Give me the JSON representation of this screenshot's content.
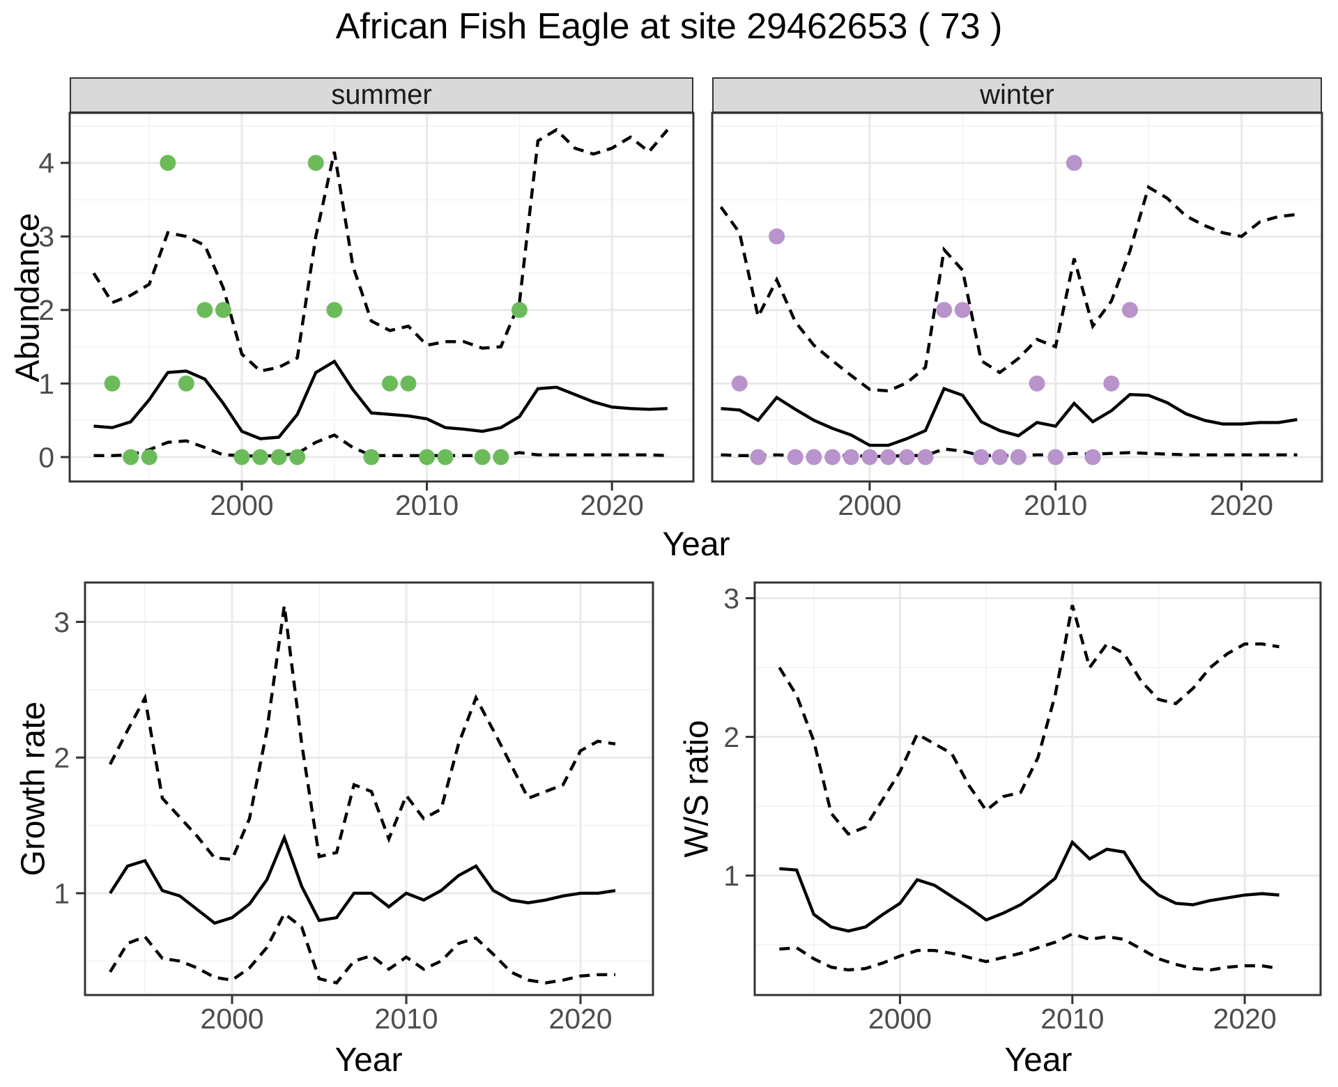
{
  "title": "African Fish Eagle at site 29462653 ( 73 )",
  "top_row": {
    "facets": [
      "summer",
      "winter"
    ],
    "ylabel": "Abundance",
    "xlabel": "Year"
  },
  "bottom_row": {
    "left": {
      "ylabel": "Growth rate",
      "xlabel": "Year"
    },
    "right": {
      "ylabel": "W/S ratio",
      "xlabel": "Year"
    }
  },
  "colors": {
    "summer_points": "#6cbb5b",
    "winter_points": "#b993cb",
    "line": "#000000",
    "grid_major": "#e9e9e9",
    "grid_minor": "#f3f3f3",
    "panel_border": "#333333",
    "strip_fill": "#d9d9d9",
    "tick_text": "#4d4d4d"
  },
  "chart_data": [
    {
      "id": "abundance-summer",
      "type": "line",
      "facet": "summer",
      "title": "Abundance vs Year (summer)",
      "xlabel": "Year",
      "ylabel": "Abundance",
      "xlim": [
        1990.7,
        2024.4
      ],
      "ylim": [
        -0.332,
        4.68
      ],
      "xticks": [
        2000,
        2010,
        2020
      ],
      "xminor": [
        1995,
        2005,
        2015
      ],
      "yticks": [
        0,
        1,
        2,
        3,
        4
      ],
      "yminor": [
        0.5,
        1.5,
        2.5,
        3.5,
        4.5
      ],
      "grid": true,
      "legend": "none",
      "years": [
        1992,
        1993,
        1994,
        1995,
        1996,
        1997,
        1998,
        1999,
        2000,
        2001,
        2002,
        2003,
        2004,
        2005,
        2006,
        2007,
        2008,
        2009,
        2010,
        2011,
        2012,
        2013,
        2014,
        2015,
        2016,
        2017,
        2018,
        2019,
        2020,
        2021,
        2022,
        2023
      ],
      "series": [
        {
          "name": "ci_upper",
          "style": "dashed",
          "values": [
            2.5,
            2.1,
            2.2,
            2.35,
            3.05,
            3.0,
            2.88,
            2.3,
            1.4,
            1.17,
            1.22,
            1.35,
            3.0,
            4.15,
            2.6,
            1.85,
            1.72,
            1.78,
            1.52,
            1.57,
            1.57,
            1.48,
            1.5,
            2.1,
            4.3,
            4.45,
            4.2,
            4.12,
            4.2,
            4.35,
            4.15,
            4.45
          ]
        },
        {
          "name": "ci_lower",
          "style": "dashed",
          "values": [
            0.02,
            0.02,
            0.03,
            0.1,
            0.2,
            0.22,
            0.13,
            0.03,
            0.02,
            0.01,
            0.02,
            0.05,
            0.2,
            0.3,
            0.13,
            0.02,
            0.02,
            0.02,
            0.02,
            0.02,
            0.02,
            0.02,
            0.02,
            0.06,
            0.03,
            0.03,
            0.03,
            0.03,
            0.03,
            0.03,
            0.03,
            0.02
          ]
        },
        {
          "name": "mean",
          "style": "solid",
          "values": [
            0.42,
            0.4,
            0.48,
            0.78,
            1.15,
            1.17,
            1.06,
            0.73,
            0.35,
            0.25,
            0.27,
            0.58,
            1.15,
            1.3,
            0.92,
            0.6,
            0.58,
            0.56,
            0.52,
            0.4,
            0.38,
            0.35,
            0.4,
            0.55,
            0.93,
            0.95,
            0.85,
            0.75,
            0.68,
            0.66,
            0.65,
            0.66
          ]
        }
      ],
      "points": {
        "name": "observed_counts",
        "color": "#6cbb5b",
        "data": [
          [
            1993,
            1
          ],
          [
            1994,
            0
          ],
          [
            1995,
            0
          ],
          [
            1996,
            4
          ],
          [
            1997,
            1
          ],
          [
            1998,
            2
          ],
          [
            1999,
            2
          ],
          [
            2000,
            0
          ],
          [
            2001,
            0
          ],
          [
            2002,
            0
          ],
          [
            2003,
            0
          ],
          [
            2004,
            4
          ],
          [
            2005,
            2
          ],
          [
            2007,
            0
          ],
          [
            2008,
            1
          ],
          [
            2009,
            1
          ],
          [
            2010,
            0
          ],
          [
            2011,
            0
          ],
          [
            2013,
            0
          ],
          [
            2014,
            0
          ],
          [
            2015,
            2
          ]
        ]
      }
    },
    {
      "id": "abundance-winter",
      "type": "line",
      "facet": "winter",
      "title": "Abundance vs Year (winter)",
      "xlabel": "Year",
      "ylabel": "Abundance",
      "xlim": [
        1991.53,
        2024.33
      ],
      "ylim": [
        -0.332,
        4.68
      ],
      "xticks": [
        2000,
        2010,
        2020
      ],
      "xminor": [
        1995,
        2005,
        2015
      ],
      "yticks": [
        0,
        1,
        2,
        3,
        4
      ],
      "yminor": [
        0.5,
        1.5,
        2.5,
        3.5,
        4.5
      ],
      "grid": true,
      "legend": "none",
      "years": [
        1992,
        1993,
        1994,
        1995,
        1996,
        1997,
        1998,
        1999,
        2000,
        2001,
        2002,
        2003,
        2004,
        2005,
        2006,
        2007,
        2008,
        2009,
        2010,
        2011,
        2012,
        2013,
        2014,
        2015,
        2016,
        2017,
        2018,
        2019,
        2020,
        2021,
        2022,
        2023
      ],
      "series": [
        {
          "name": "ci_upper",
          "style": "dashed",
          "values": [
            3.4,
            3.05,
            1.91,
            2.41,
            1.84,
            1.52,
            1.31,
            1.11,
            0.92,
            0.9,
            1.01,
            1.22,
            2.82,
            2.54,
            1.31,
            1.15,
            1.34,
            1.6,
            1.5,
            2.7,
            1.78,
            2.12,
            2.8,
            3.67,
            3.52,
            3.28,
            3.15,
            3.05,
            3.0,
            3.2,
            3.27,
            3.3
          ]
        },
        {
          "name": "ci_lower",
          "style": "dashed",
          "values": [
            0.03,
            0.02,
            0.02,
            0.03,
            0.02,
            0.02,
            0.02,
            0.02,
            0.01,
            0.01,
            0.02,
            0.02,
            0.11,
            0.08,
            0.02,
            0.02,
            0.02,
            0.03,
            0.03,
            0.05,
            0.04,
            0.05,
            0.06,
            0.05,
            0.04,
            0.03,
            0.03,
            0.03,
            0.03,
            0.03,
            0.03,
            0.03
          ]
        },
        {
          "name": "mean",
          "style": "solid",
          "values": [
            0.66,
            0.64,
            0.5,
            0.81,
            0.65,
            0.5,
            0.39,
            0.3,
            0.16,
            0.16,
            0.25,
            0.36,
            0.93,
            0.84,
            0.48,
            0.36,
            0.29,
            0.47,
            0.42,
            0.73,
            0.48,
            0.63,
            0.85,
            0.84,
            0.74,
            0.59,
            0.5,
            0.45,
            0.45,
            0.47,
            0.47,
            0.51
          ]
        }
      ],
      "points": {
        "name": "observed_counts",
        "color": "#b993cb",
        "data": [
          [
            1993,
            1
          ],
          [
            1994,
            0
          ],
          [
            1995,
            3
          ],
          [
            1996,
            0
          ],
          [
            1997,
            0
          ],
          [
            1998,
            0
          ],
          [
            1999,
            0
          ],
          [
            2000,
            0
          ],
          [
            2001,
            0
          ],
          [
            2002,
            0
          ],
          [
            2003,
            0
          ],
          [
            2004,
            2
          ],
          [
            2005,
            2
          ],
          [
            2006,
            0
          ],
          [
            2007,
            0
          ],
          [
            2008,
            0
          ],
          [
            2009,
            1
          ],
          [
            2010,
            0
          ],
          [
            2011,
            4
          ],
          [
            2012,
            0
          ],
          [
            2013,
            1
          ],
          [
            2014,
            2
          ]
        ]
      }
    },
    {
      "id": "growth-rate",
      "type": "line",
      "title": "Growth rate vs Year",
      "xlabel": "Year",
      "ylabel": "Growth rate",
      "xlim": [
        1991.56,
        2024.16
      ],
      "ylim": [
        0.25,
        3.29
      ],
      "xticks": [
        2000,
        2010,
        2020
      ],
      "xminor": [
        1995,
        2005,
        2015
      ],
      "yticks": [
        1,
        2,
        3
      ],
      "yminor": [
        0.5,
        1.5,
        2.5
      ],
      "grid": true,
      "legend": "none",
      "years": [
        1993,
        1994,
        1995,
        1996,
        1997,
        1998,
        1999,
        2000,
        2001,
        2002,
        2003,
        2004,
        2005,
        2006,
        2007,
        2008,
        2009,
        2010,
        2011,
        2012,
        2013,
        2014,
        2015,
        2016,
        2017,
        2018,
        2019,
        2020,
        2021,
        2022
      ],
      "series": [
        {
          "name": "ci_upper",
          "style": "dashed",
          "values": [
            1.95,
            2.2,
            2.44,
            1.7,
            1.56,
            1.42,
            1.26,
            1.25,
            1.55,
            2.2,
            3.12,
            2.1,
            1.27,
            1.3,
            1.8,
            1.75,
            1.4,
            1.72,
            1.55,
            1.62,
            2.1,
            2.44,
            2.2,
            1.95,
            1.7,
            1.75,
            1.8,
            2.05,
            2.12,
            2.1
          ]
        },
        {
          "name": "ci_lower",
          "style": "dashed",
          "values": [
            0.42,
            0.63,
            0.68,
            0.52,
            0.5,
            0.45,
            0.38,
            0.36,
            0.45,
            0.6,
            0.85,
            0.75,
            0.37,
            0.34,
            0.5,
            0.54,
            0.44,
            0.53,
            0.44,
            0.5,
            0.63,
            0.67,
            0.55,
            0.42,
            0.36,
            0.34,
            0.36,
            0.39,
            0.4,
            0.4
          ]
        },
        {
          "name": "mean",
          "style": "solid",
          "values": [
            1.0,
            1.2,
            1.24,
            1.02,
            0.98,
            0.88,
            0.78,
            0.82,
            0.92,
            1.1,
            1.41,
            1.05,
            0.8,
            0.82,
            1.0,
            1.0,
            0.9,
            1.0,
            0.95,
            1.02,
            1.13,
            1.2,
            1.02,
            0.95,
            0.93,
            0.95,
            0.98,
            1.0,
            1.0,
            1.02
          ]
        }
      ]
    },
    {
      "id": "ws-ratio",
      "type": "line",
      "title": "W/S ratio vs Year",
      "xlabel": "Year",
      "ylabel": "W/S ratio",
      "xlim": [
        1991.57,
        2024.4
      ],
      "ylim": [
        0.139,
        3.113
      ],
      "xticks": [
        2000,
        2010,
        2020
      ],
      "xminor": [
        1995,
        2005,
        2015
      ],
      "yticks": [
        1,
        2,
        3
      ],
      "yminor": [
        0.5,
        1.5,
        2.5
      ],
      "grid": true,
      "legend": "none",
      "years": [
        1993,
        1994,
        1995,
        1996,
        1997,
        1998,
        1999,
        2000,
        2001,
        2002,
        2003,
        2004,
        2005,
        2006,
        2007,
        2008,
        2009,
        2010,
        2011,
        2012,
        2013,
        2014,
        2015,
        2016,
        2017,
        2018,
        2019,
        2020,
        2021,
        2022
      ],
      "series": [
        {
          "name": "ci_upper",
          "style": "dashed",
          "values": [
            2.5,
            2.3,
            1.97,
            1.45,
            1.3,
            1.35,
            1.55,
            1.75,
            2.02,
            1.95,
            1.88,
            1.65,
            1.47,
            1.57,
            1.6,
            1.85,
            2.3,
            2.95,
            2.5,
            2.67,
            2.6,
            2.4,
            2.27,
            2.24,
            2.35,
            2.5,
            2.6,
            2.67,
            2.67,
            2.65
          ]
        },
        {
          "name": "ci_lower",
          "style": "dashed",
          "values": [
            0.47,
            0.48,
            0.4,
            0.34,
            0.32,
            0.33,
            0.37,
            0.42,
            0.46,
            0.46,
            0.44,
            0.41,
            0.38,
            0.41,
            0.44,
            0.48,
            0.52,
            0.58,
            0.54,
            0.56,
            0.54,
            0.47,
            0.4,
            0.36,
            0.33,
            0.32,
            0.34,
            0.35,
            0.35,
            0.33
          ]
        },
        {
          "name": "mean",
          "style": "solid",
          "values": [
            1.05,
            1.04,
            0.72,
            0.63,
            0.6,
            0.63,
            0.72,
            0.8,
            0.97,
            0.93,
            0.85,
            0.77,
            0.68,
            0.73,
            0.79,
            0.88,
            0.98,
            1.24,
            1.12,
            1.19,
            1.17,
            0.97,
            0.86,
            0.8,
            0.79,
            0.82,
            0.84,
            0.86,
            0.87,
            0.86
          ]
        }
      ]
    }
  ]
}
